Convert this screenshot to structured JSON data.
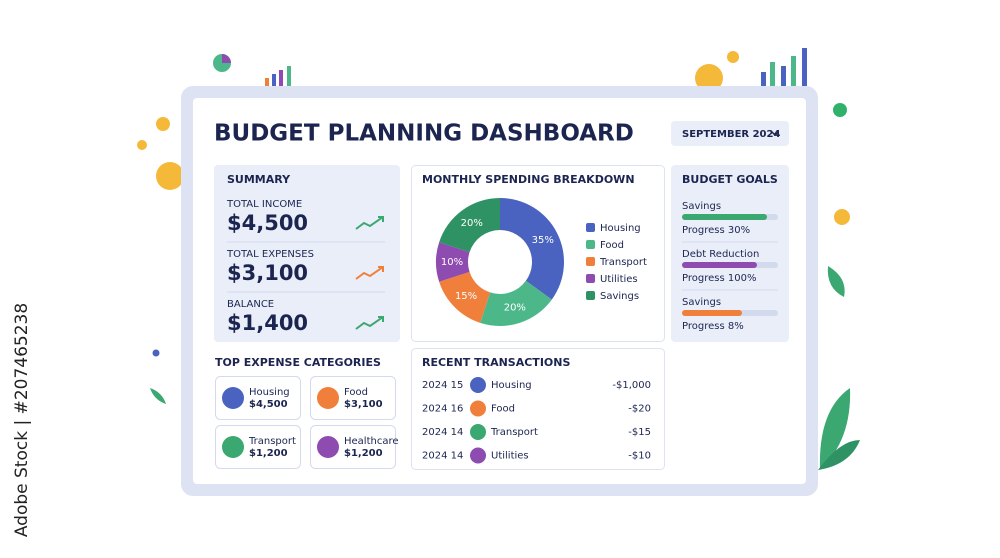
{
  "header": {
    "title": "BUDGET PLANNING DASHBOARD",
    "date_selector": "SEPTEMBER 2024"
  },
  "summary": {
    "title": "SUMMARY",
    "items": [
      {
        "label": "TOTAL INCOME",
        "amount": "$4,500"
      },
      {
        "label": "TOTAL EXPENSES",
        "amount": "$3,100"
      },
      {
        "label": "BALANCE",
        "amount": "$1,400"
      }
    ]
  },
  "chart_data": {
    "type": "pie",
    "donut": true,
    "title": "MONTHLY SPENDING BREAKDOWN",
    "categories": [
      "Housing",
      "Food",
      "Transport",
      "Utilities",
      "Savings"
    ],
    "values": [
      35,
      20,
      15,
      10,
      20
    ],
    "value_labels": [
      "35%",
      "20%",
      "15%",
      "10%",
      "20%"
    ],
    "colors": [
      "#4a63c0",
      "#4cb88a",
      "#f07f3c",
      "#8e4bb0",
      "#2f9265"
    ]
  },
  "budget_goals": {
    "title": "BUDGET GOALS",
    "goals": [
      {
        "name": "Savings",
        "progress": "Progress 30%"
      },
      {
        "name": "Debt Reduction",
        "progress": "Progress 100%"
      },
      {
        "name": "Savings",
        "progress": "Progress 8%"
      }
    ]
  },
  "top_expenses": {
    "title": "TOP EXPENSE CATEGORIES",
    "items": [
      {
        "name": "Housing",
        "amount": "$4,500"
      },
      {
        "name": "Food",
        "amount": "$3,100"
      },
      {
        "name": "Transport",
        "amount": "$1,200"
      },
      {
        "name": "Healthcare",
        "amount": "$1,200"
      }
    ]
  },
  "transactions": {
    "title": "RECENT TRANSACTIONS",
    "rows": [
      {
        "date": "2024 15",
        "name": "Housing",
        "amount": "-$1,000"
      },
      {
        "date": "2024 16",
        "name": "Food",
        "amount": "-$20"
      },
      {
        "date": "2024 14",
        "name": "Transport",
        "amount": "-$15"
      },
      {
        "date": "2024 14",
        "name": "Utilities",
        "amount": "-$10"
      }
    ]
  },
  "watermark": "Adobe Stock | #207465238"
}
